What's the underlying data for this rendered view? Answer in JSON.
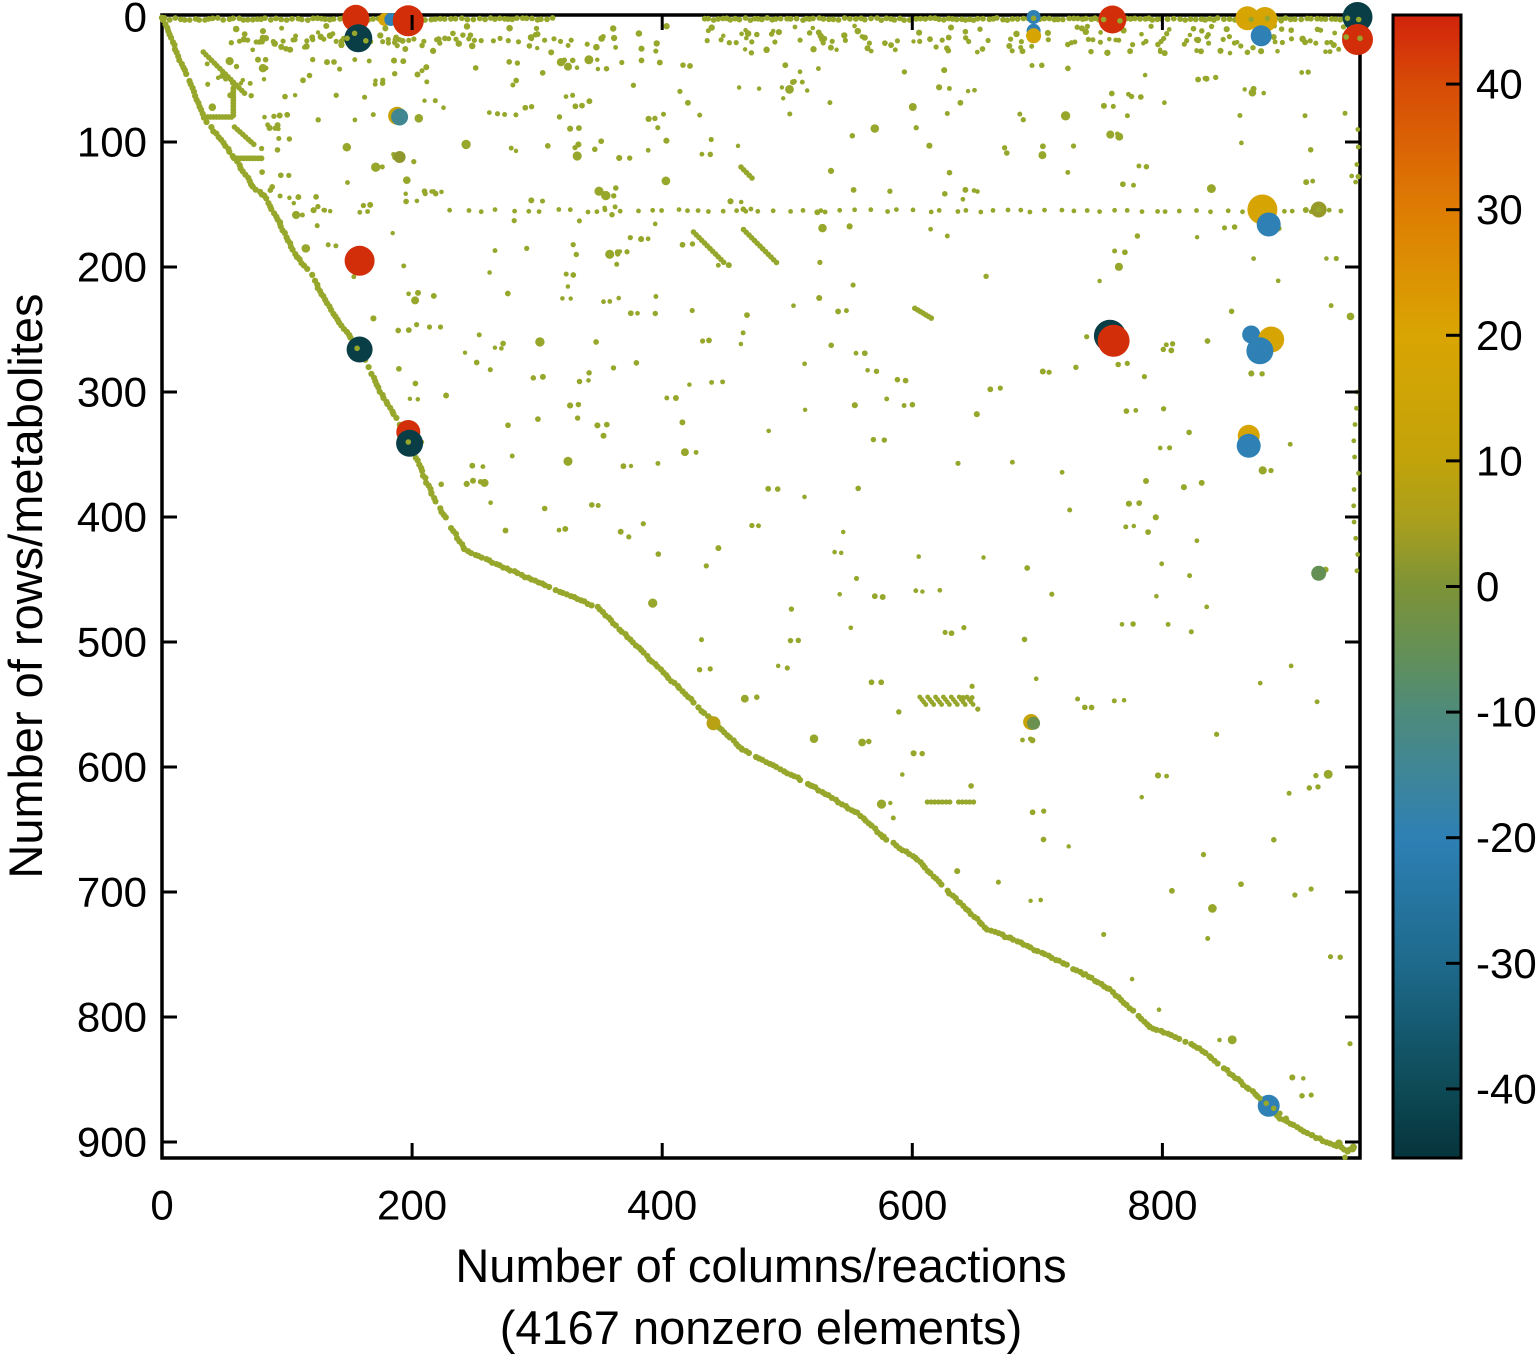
{
  "chart_data": {
    "type": "scatter",
    "subtype": "sparse-matrix-sparsity-pattern",
    "title": "",
    "xlabel": "Number of columns/reactions",
    "xlabel_note": "(4167 nonzero elements)",
    "ylabel": "Number of rows/metabolites",
    "nonzero_elements": 4167,
    "x_ticks": [
      0,
      200,
      400,
      600,
      800
    ],
    "y_ticks": [
      0,
      100,
      200,
      300,
      400,
      500,
      600,
      700,
      800,
      900
    ],
    "xlim": [
      0,
      958
    ],
    "ylim": [
      0,
      913
    ],
    "y_inverted": true,
    "grid": false,
    "colorbar": {
      "position": "right",
      "vmin": -45.5,
      "vmax": 45.5,
      "ticks": [
        40,
        30,
        20,
        10,
        0,
        -10,
        -20,
        -30,
        -40
      ],
      "palette": [
        [
          45.5,
          "#d2230b"
        ],
        [
          40,
          "#d74b07"
        ],
        [
          30,
          "#de7d03"
        ],
        [
          20,
          "#d9a502"
        ],
        [
          10,
          "#c2a30a"
        ],
        [
          5,
          "#a89f1e"
        ],
        [
          0,
          "#7d9337"
        ],
        [
          -5,
          "#659055"
        ],
        [
          -10,
          "#4e8b7b"
        ],
        [
          -20,
          "#2e80b5"
        ],
        [
          -30,
          "#1e6a8c"
        ],
        [
          -40,
          "#0d4a55"
        ],
        [
          -45.5,
          "#06343c"
        ]
      ]
    },
    "styles": {
      "dot_color": "#96a72c",
      "border_color": "#000000",
      "background": "#ffffff"
    },
    "diagonal_curve": [
      [
        0,
        0
      ],
      [
        34,
        81
      ],
      [
        60,
        116
      ],
      [
        73,
        136
      ],
      [
        82,
        143
      ],
      [
        94,
        165
      ],
      [
        102,
        181
      ],
      [
        108,
        192
      ],
      [
        121,
        208
      ],
      [
        129,
        224
      ],
      [
        140,
        242
      ],
      [
        158,
        266
      ],
      [
        176,
        302
      ],
      [
        197,
        338
      ],
      [
        216,
        382
      ],
      [
        242,
        426
      ],
      [
        295,
        450
      ],
      [
        348,
        472
      ],
      [
        441,
        564
      ],
      [
        464,
        586
      ],
      [
        520,
        615
      ],
      [
        556,
        637
      ],
      [
        577,
        656
      ],
      [
        604,
        674
      ],
      [
        638,
        709
      ],
      [
        660,
        730
      ],
      [
        678,
        737
      ],
      [
        721,
        757
      ],
      [
        738,
        766
      ],
      [
        758,
        778
      ],
      [
        790,
        808
      ],
      [
        820,
        820
      ],
      [
        830,
        825
      ],
      [
        860,
        850
      ],
      [
        885,
        871
      ],
      [
        894,
        881
      ],
      [
        920,
        895
      ],
      [
        950,
        908
      ]
    ],
    "large_markers": [
      {
        "x": 155,
        "y": 1,
        "r": 13.5,
        "value": 44
      },
      {
        "x": 178,
        "y": 2,
        "r": 6.5,
        "value": 19
      },
      {
        "x": 183,
        "y": 2,
        "r": 6.5,
        "value": -20
      },
      {
        "x": 197,
        "y": 3,
        "r": 15.5,
        "value": 44
      },
      {
        "x": 157,
        "y": 17,
        "r": 14,
        "value": -43
      },
      {
        "x": 697,
        "y": 0,
        "r": 7,
        "value": -20
      },
      {
        "x": 697,
        "y": 11,
        "r": 7,
        "value": -20
      },
      {
        "x": 697,
        "y": 15,
        "r": 7.5,
        "value": 19
      },
      {
        "x": 760,
        "y": 2,
        "r": 14,
        "value": 44
      },
      {
        "x": 868,
        "y": 1,
        "r": 12,
        "value": 19
      },
      {
        "x": 882,
        "y": 2,
        "r": 12.5,
        "value": 19
      },
      {
        "x": 879,
        "y": 15,
        "r": 10.5,
        "value": -20
      },
      {
        "x": 956,
        "y": 0,
        "r": 15,
        "value": -43
      },
      {
        "x": 956,
        "y": 18,
        "r": 15.5,
        "value": 44
      },
      {
        "x": 188,
        "y": 79,
        "r": 9,
        "value": 12
      },
      {
        "x": 190,
        "y": 80,
        "r": 8.5,
        "value": -14
      },
      {
        "x": 190,
        "y": 112,
        "r": 6,
        "value": 2
      },
      {
        "x": 158,
        "y": 195,
        "r": 15,
        "value": 44
      },
      {
        "x": 158,
        "y": 266,
        "r": 13,
        "value": -43
      },
      {
        "x": 197,
        "y": 332,
        "r": 12,
        "value": 44
      },
      {
        "x": 198,
        "y": 341,
        "r": 13.5,
        "value": -43
      },
      {
        "x": 925,
        "y": 154,
        "r": 8,
        "value": 3
      },
      {
        "x": 880,
        "y": 154,
        "r": 15,
        "value": 19
      },
      {
        "x": 885,
        "y": 166,
        "r": 12,
        "value": -20
      },
      {
        "x": 758,
        "y": 255,
        "r": 16,
        "value": -43
      },
      {
        "x": 761,
        "y": 259,
        "r": 16,
        "value": 44
      },
      {
        "x": 871,
        "y": 254,
        "r": 9,
        "value": -20
      },
      {
        "x": 887,
        "y": 258,
        "r": 13,
        "value": 19
      },
      {
        "x": 878,
        "y": 267,
        "r": 13.5,
        "value": -20
      },
      {
        "x": 869,
        "y": 335,
        "r": 11,
        "value": 19
      },
      {
        "x": 869,
        "y": 343,
        "r": 12,
        "value": -20
      },
      {
        "x": 885,
        "y": 871,
        "r": 11,
        "value": -20
      },
      {
        "x": 441,
        "y": 565,
        "r": 7,
        "value": 8
      },
      {
        "x": 695,
        "y": 564,
        "r": 8,
        "value": 12
      },
      {
        "x": 697,
        "y": 565,
        "r": 6.5,
        "value": -4
      },
      {
        "x": 925,
        "y": 445,
        "r": 7.5,
        "value": -5
      }
    ],
    "overlay_dots": [
      [
        148,
        17
      ],
      [
        154,
        13
      ],
      [
        163,
        19
      ],
      [
        697,
        1
      ],
      [
        753,
        2
      ],
      [
        766,
        3
      ],
      [
        871,
        2
      ],
      [
        884,
        1
      ],
      [
        895,
        3
      ],
      [
        948,
        1
      ],
      [
        957,
        2
      ],
      [
        947,
        16
      ],
      [
        958,
        17
      ],
      [
        156,
        265
      ],
      [
        197,
        340
      ],
      [
        878,
        865
      ],
      [
        883,
        869
      ],
      [
        889,
        873
      ],
      [
        894,
        877
      ],
      [
        899,
        881
      ],
      [
        925,
        154
      ]
    ],
    "structured_runs": {
      "row0_segments": [
        [
          2,
          313
        ],
        [
          434,
          956
        ]
      ],
      "band": {
        "y0": 7,
        "y1": 29,
        "count": 210,
        "x0": 55,
        "x1": 950,
        "gap": [
          328,
          432
        ],
        "gap_keep": 0.3
      },
      "subrows": [
        {
          "y": 17,
          "jit": 3,
          "x0": 62,
          "x1": 330,
          "minstep": 4,
          "maxstep": 11
        },
        {
          "y": 17,
          "jit": 4,
          "x0": 436,
          "x1": 935,
          "minstep": 7,
          "maxstep": 23
        }
      ],
      "hrun78": {
        "y": 78,
        "xs": [
          169,
          188,
          274,
          283,
          401,
          430,
          502,
          628,
          686,
          772,
          862,
          914,
          946
        ]
      },
      "hrun155": {
        "y": 155,
        "x0": 230,
        "x1": 948,
        "minstep": 6,
        "maxstep": 16
      },
      "hbars": [
        {
          "y": 80,
          "x0": 34,
          "x1": 57
        },
        {
          "y": 113,
          "x0": 58,
          "x1": 80
        }
      ],
      "vbars": [
        {
          "x": 57,
          "y0": 57,
          "y1": 80
        }
      ],
      "dashes": [
        {
          "x": 33,
          "y": 28,
          "len": 33,
          "slope": 1.0
        },
        {
          "x": 58,
          "y": 88,
          "len": 17,
          "slope": 0.9
        },
        {
          "x": 463,
          "y": 120,
          "len": 10,
          "slope": 1.0
        },
        {
          "x": 425,
          "y": 172,
          "len": 25,
          "slope": 1.0
        },
        {
          "x": 465,
          "y": 170,
          "len": 28,
          "slope": 1.0
        },
        {
          "x": 602,
          "y": 233,
          "len": 14,
          "slope": 0.6
        }
      ],
      "zigzag": {
        "x0": 606,
        "y": 544,
        "count": 7,
        "step": 6.3,
        "len": 6
      },
      "hdashes": [
        {
          "y": 628,
          "x0": 612,
          "x1": 631
        },
        {
          "y": 628,
          "x0": 637,
          "x1": 651
        }
      ],
      "vruns": [
        {
          "x": 955,
          "y0": 90,
          "y1": 140,
          "step": 14
        },
        {
          "x": 955,
          "y0": 300,
          "y1": 445,
          "step": 13
        }
      ],
      "corner_cluster": {
        "x": 949,
        "y": 904,
        "count": 8,
        "sx": 10,
        "sy": 9
      }
    },
    "background": {
      "seed": 20240913,
      "scatter_count": 430,
      "scatter_x0": 30,
      "scatter_x1": 952,
      "scatter_ytop": 34,
      "diag_margin": 12,
      "y_bias_pow": 1.5,
      "pair_probability": 0.3,
      "dot_radius": 2.5
    }
  }
}
